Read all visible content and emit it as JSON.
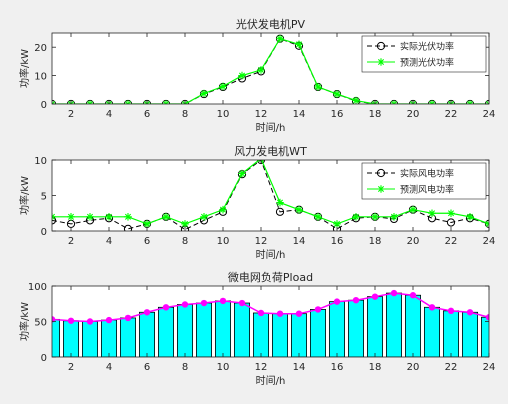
{
  "chart_data": [
    {
      "type": "line",
      "title": "光伏发电机PV",
      "xlabel": "时间/h",
      "ylabel": "功率/kW",
      "xlim": [
        1,
        24
      ],
      "ylim": [
        0,
        25
      ],
      "xticks": [
        2,
        4,
        6,
        8,
        10,
        12,
        14,
        16,
        18,
        20,
        22,
        24
      ],
      "yticks": [
        0,
        10,
        20
      ],
      "grid": false,
      "legend_position": "top-right",
      "x": [
        1,
        2,
        3,
        4,
        5,
        6,
        7,
        8,
        9,
        10,
        11,
        12,
        13,
        14,
        15,
        16,
        17,
        18,
        19,
        20,
        21,
        22,
        23,
        24
      ],
      "series": [
        {
          "name": "实际光伏功率",
          "color": "#000000",
          "style": "dashed",
          "marker": "circle",
          "values": [
            0,
            0,
            0,
            0,
            0,
            0,
            0,
            0,
            3.5,
            6,
            9,
            11.5,
            23,
            20.5,
            6,
            3.5,
            1,
            0,
            0,
            0,
            0,
            0,
            0,
            0
          ]
        },
        {
          "name": "预测光伏功率",
          "color": "#00ff00",
          "style": "solid",
          "marker": "star",
          "values": [
            0,
            0,
            0,
            0,
            0,
            0,
            0,
            0,
            3.7,
            6.2,
            10,
            12,
            23,
            21,
            6,
            3.5,
            1.2,
            0,
            0,
            0,
            0,
            0,
            0,
            0
          ]
        }
      ]
    },
    {
      "type": "line",
      "title": "风力发电机WT",
      "xlabel": "时间/h",
      "ylabel": "功率/kW",
      "xlim": [
        1,
        24
      ],
      "ylim": [
        0,
        10
      ],
      "xticks": [
        2,
        4,
        6,
        8,
        10,
        12,
        14,
        16,
        18,
        20,
        22,
        24
      ],
      "yticks": [
        0,
        5,
        10
      ],
      "grid": false,
      "legend_position": "top-right",
      "x": [
        1,
        2,
        3,
        4,
        5,
        6,
        7,
        8,
        9,
        10,
        11,
        12,
        13,
        14,
        15,
        16,
        17,
        18,
        19,
        20,
        21,
        22,
        23,
        24
      ],
      "series": [
        {
          "name": "实际风电功率",
          "color": "#000000",
          "style": "dashed",
          "marker": "circle",
          "values": [
            1.5,
            1,
            1.5,
            1.8,
            0.3,
            1,
            2,
            0.2,
            1.5,
            2.7,
            8,
            10,
            2.7,
            3,
            2,
            0.3,
            1.8,
            2,
            1.7,
            3,
            1.8,
            1.2,
            1.8,
            1
          ]
        },
        {
          "name": "预测风电功率",
          "color": "#00ff00",
          "style": "solid",
          "marker": "star",
          "values": [
            2,
            2,
            2,
            2,
            2,
            1,
            2,
            1,
            2,
            3,
            8.1,
            10.2,
            4,
            3,
            2,
            1,
            2,
            2,
            2,
            3,
            2.5,
            2.5,
            2,
            1
          ]
        }
      ]
    },
    {
      "type": "bar",
      "title": "微电网负荷Pload",
      "xlabel": "时间/h",
      "ylabel": "功率/kW",
      "xlim": [
        1,
        24
      ],
      "ylim": [
        0,
        100
      ],
      "xticks": [
        2,
        4,
        6,
        8,
        10,
        12,
        14,
        16,
        18,
        20,
        22,
        24
      ],
      "yticks": [
        0,
        50,
        100
      ],
      "grid": false,
      "bar_color": "#00ffff",
      "line_color": "#ff00ff",
      "x": [
        1,
        2,
        3,
        4,
        5,
        6,
        7,
        8,
        9,
        10,
        11,
        12,
        13,
        14,
        15,
        16,
        17,
        18,
        19,
        20,
        21,
        22,
        23,
        24
      ],
      "values": [
        53,
        51,
        50,
        52,
        55,
        63,
        70,
        74,
        76,
        79,
        76,
        62,
        61,
        61,
        67,
        78,
        80,
        85,
        90,
        87,
        70,
        65,
        63,
        56
      ]
    }
  ]
}
